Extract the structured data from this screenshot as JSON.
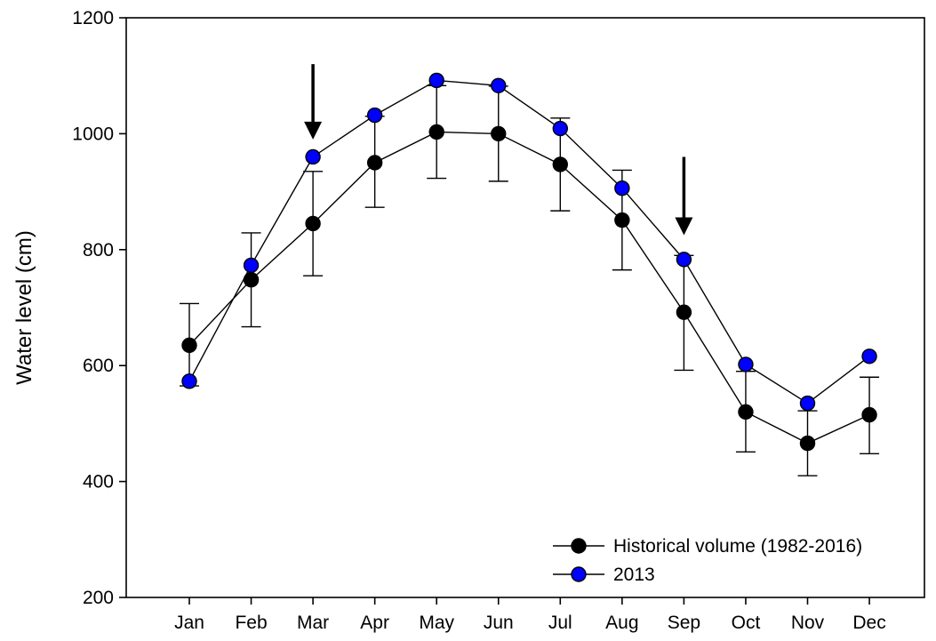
{
  "chart_data": {
    "type": "line",
    "title": "",
    "xlabel": "",
    "ylabel": "Water level (cm)",
    "ylim": [
      200,
      1200
    ],
    "yticks": [
      200,
      400,
      600,
      800,
      1000,
      1200
    ],
    "grid": false,
    "legend_position": "bottom-right",
    "categories": [
      "Jan",
      "Feb",
      "Mar",
      "Apr",
      "May",
      "Jun",
      "Jul",
      "Aug",
      "Sep",
      "Oct",
      "Nov",
      "Dec"
    ],
    "series": [
      {
        "name": "Historical volume (1982-2016)",
        "color": "#000000",
        "values": [
          635,
          748,
          845,
          950,
          1003,
          1000,
          947,
          851,
          692,
          520,
          466,
          515
        ],
        "error_low": [
          565,
          667,
          755,
          873,
          923,
          918,
          867,
          765,
          592,
          451,
          410,
          448
        ],
        "error_high": [
          707,
          829,
          935,
          1030,
          1083,
          1082,
          1027,
          937,
          790,
          590,
          522,
          580
        ]
      },
      {
        "name": "2013",
        "color": "#0000ff",
        "values": [
          573,
          773,
          960,
          1032,
          1092,
          1083,
          1009,
          906,
          783,
          602,
          535,
          616
        ]
      }
    ],
    "annotations": [
      {
        "type": "arrow",
        "category": "Mar",
        "y_top": 1120,
        "y_bottom": 990
      },
      {
        "type": "arrow",
        "category": "Sep",
        "y_top": 960,
        "y_bottom": 825
      }
    ]
  }
}
